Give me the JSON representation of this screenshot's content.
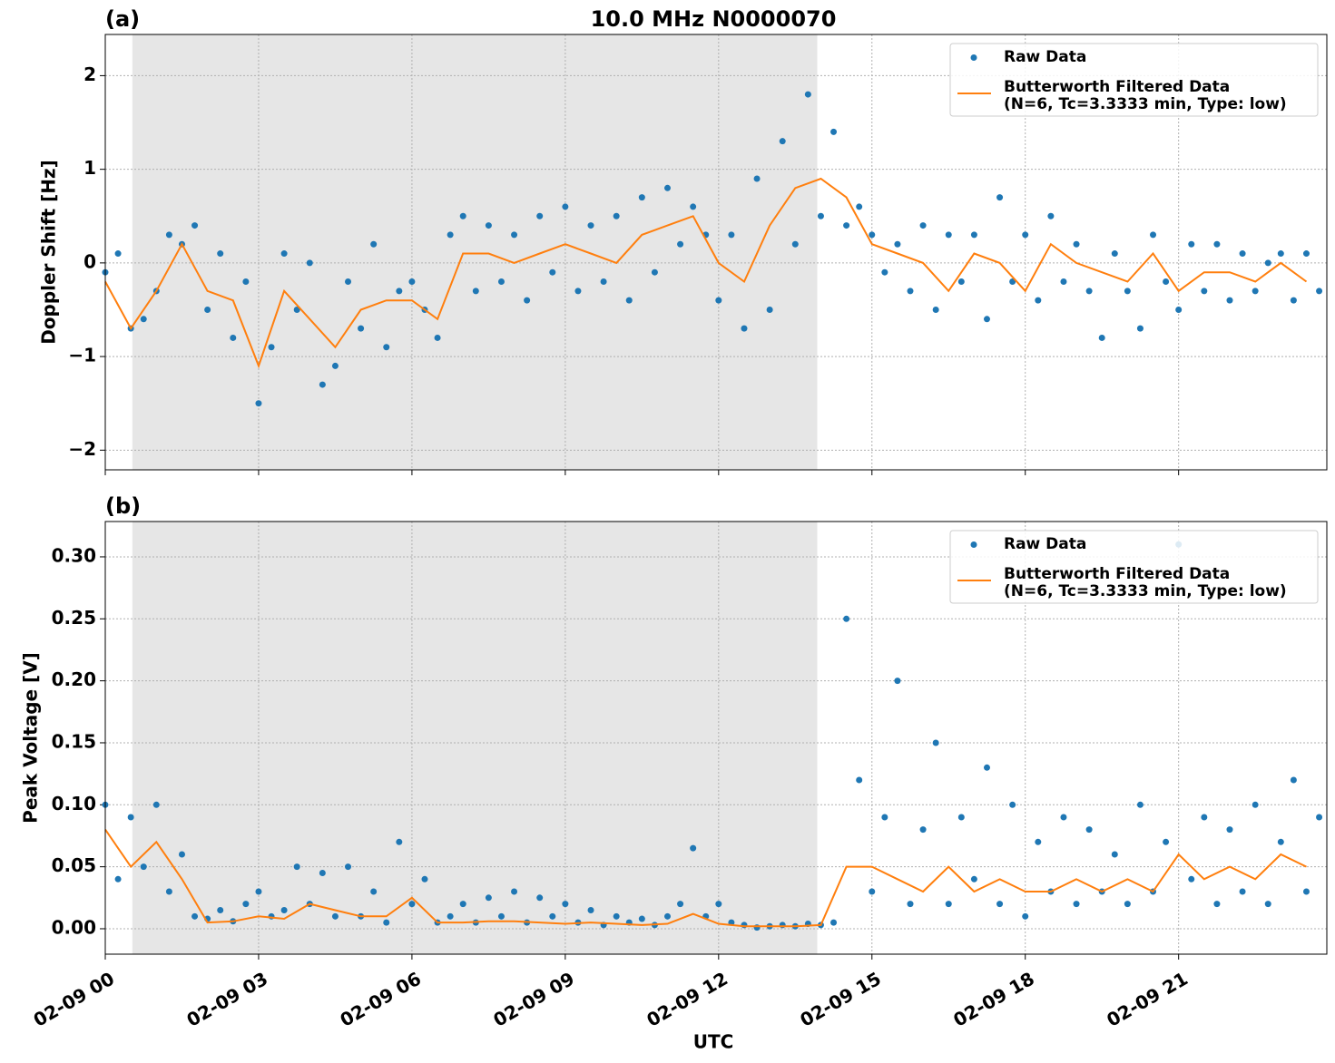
{
  "chart_data": [
    {
      "type": "line",
      "panel_label": "(a)",
      "title": "10.0 MHz N0000070",
      "ylabel": "Doppler Shift [Hz]",
      "xlim": [
        0,
        23.9
      ],
      "ylim": [
        -2.21,
        2.44
      ],
      "xticks": [
        0,
        3,
        6,
        9,
        12,
        15,
        18,
        21
      ],
      "yticks": [
        {
          "value": -2,
          "label": "−2"
        },
        {
          "value": -1,
          "label": "−1"
        },
        0,
        1,
        2
      ],
      "grid": true,
      "legend": "upper right",
      "shaded_span": [
        0.53,
        13.93
      ],
      "shade_color": "#e6e6e6",
      "series": [
        {
          "name": "Raw Data",
          "kind": "scatter",
          "color": "#1f77b4",
          "x": [
            0,
            0.25,
            0.5,
            0.75,
            1,
            1.25,
            1.5,
            1.75,
            2,
            2.25,
            2.5,
            2.75,
            3,
            3.25,
            3.5,
            3.75,
            4,
            4.25,
            4.5,
            4.75,
            5,
            5.25,
            5.5,
            5.75,
            6,
            6.25,
            6.5,
            6.75,
            7,
            7.25,
            7.5,
            7.75,
            8,
            8.25,
            8.5,
            8.75,
            9,
            9.25,
            9.5,
            9.75,
            10,
            10.25,
            10.5,
            10.75,
            11,
            11.25,
            11.5,
            11.75,
            12,
            12.25,
            12.5,
            12.75,
            13,
            13.25,
            13.5,
            13.75,
            14,
            14.25,
            14.5,
            14.75,
            15,
            15.25,
            15.5,
            15.75,
            16,
            16.25,
            16.5,
            16.75,
            17,
            17.25,
            17.5,
            17.75,
            18,
            18.25,
            18.5,
            18.75,
            19,
            19.25,
            19.5,
            19.75,
            20,
            20.25,
            20.5,
            20.75,
            21,
            21.25,
            21.5,
            21.75,
            22,
            22.25,
            22.5,
            22.75,
            23,
            23.25,
            23.5,
            23.75
          ],
          "values": [
            -0.1,
            0.1,
            -0.7,
            -0.6,
            -0.3,
            0.3,
            0.2,
            0.4,
            -0.5,
            0.1,
            -0.8,
            -0.2,
            -1.5,
            -0.9,
            0.1,
            -0.5,
            0.0,
            -1.3,
            -1.1,
            -0.2,
            -0.7,
            0.2,
            -0.9,
            -0.3,
            -0.2,
            -0.5,
            -0.8,
            0.3,
            0.5,
            -0.3,
            0.4,
            -0.2,
            0.3,
            -0.4,
            0.5,
            -0.1,
            0.6,
            -0.3,
            0.4,
            -0.2,
            0.5,
            -0.4,
            0.7,
            -0.1,
            0.8,
            0.2,
            0.6,
            0.3,
            -0.4,
            0.3,
            -0.7,
            0.9,
            -0.5,
            1.3,
            0.2,
            1.8,
            0.5,
            1.4,
            0.4,
            0.6,
            0.3,
            -0.1,
            0.2,
            -0.3,
            0.4,
            -0.5,
            0.3,
            -0.2,
            0.3,
            -0.6,
            0.7,
            -0.2,
            0.3,
            -0.4,
            0.5,
            -0.2,
            0.2,
            -0.3,
            -0.8,
            0.1,
            -0.3,
            -0.7,
            0.3,
            -0.2,
            -0.5,
            0.2,
            -0.3,
            0.2,
            -0.4,
            0.1,
            -0.3,
            0.0,
            0.1,
            -0.4,
            0.1,
            -0.3
          ]
        },
        {
          "name": "Butterworth Filtered Data\n(N=6, Tc=3.3333 min, Type: low)",
          "kind": "line",
          "color": "#ff7f0e",
          "x": [
            0,
            0.5,
            1,
            1.5,
            2,
            2.5,
            3,
            3.5,
            4,
            4.5,
            5,
            5.5,
            6,
            6.5,
            7,
            7.5,
            8,
            8.5,
            9,
            9.5,
            10,
            10.5,
            11,
            11.5,
            12,
            12.5,
            13,
            13.5,
            14,
            14.5,
            15,
            15.5,
            16,
            16.5,
            17,
            17.5,
            18,
            18.5,
            19,
            19.5,
            20,
            20.5,
            21,
            21.5,
            22,
            22.5,
            23,
            23.5
          ],
          "values": [
            -0.2,
            -0.7,
            -0.3,
            0.2,
            -0.3,
            -0.4,
            -1.1,
            -0.3,
            -0.6,
            -0.9,
            -0.5,
            -0.4,
            -0.4,
            -0.6,
            0.1,
            0.1,
            0.0,
            0.1,
            0.2,
            0.1,
            0.0,
            0.3,
            0.4,
            0.5,
            0.0,
            -0.2,
            0.4,
            0.8,
            0.9,
            0.7,
            0.2,
            0.1,
            0.0,
            -0.3,
            0.1,
            0.0,
            -0.3,
            0.2,
            0.0,
            -0.1,
            -0.2,
            0.1,
            -0.3,
            -0.1,
            -0.1,
            -0.2,
            0.0,
            -0.2
          ]
        }
      ]
    },
    {
      "type": "line",
      "panel_label": "(b)",
      "ylabel": "Peak Voltage [V]",
      "xlabel": "UTC",
      "xlim": [
        0,
        23.9
      ],
      "ylim": [
        -0.0205,
        0.3285
      ],
      "xticks": [
        {
          "value": 0,
          "label": "02-09 00"
        },
        {
          "value": 3,
          "label": "02-09 03"
        },
        {
          "value": 6,
          "label": "02-09 06"
        },
        {
          "value": 9,
          "label": "02-09 09"
        },
        {
          "value": 12,
          "label": "02-09 12"
        },
        {
          "value": 15,
          "label": "02-09 15"
        },
        {
          "value": 18,
          "label": "02-09 18"
        },
        {
          "value": 21,
          "label": "02-09 21"
        }
      ],
      "yticks": [
        {
          "value": 0,
          "label": "0.00"
        },
        {
          "value": 0.05,
          "label": "0.05"
        },
        {
          "value": 0.1,
          "label": "0.10"
        },
        {
          "value": 0.15,
          "label": "0.15"
        },
        {
          "value": 0.2,
          "label": "0.20"
        },
        {
          "value": 0.25,
          "label": "0.25"
        },
        {
          "value": 0.3,
          "label": "0.30"
        }
      ],
      "grid": true,
      "legend": "upper right",
      "shaded_span": [
        0.53,
        13.93
      ],
      "shade_color": "#e6e6e6",
      "series": [
        {
          "name": "Raw Data",
          "kind": "scatter",
          "color": "#1f77b4",
          "x": [
            0,
            0.25,
            0.5,
            0.75,
            1,
            1.25,
            1.5,
            1.75,
            2,
            2.25,
            2.5,
            2.75,
            3,
            3.25,
            3.5,
            3.75,
            4,
            4.25,
            4.5,
            4.75,
            5,
            5.25,
            5.5,
            5.75,
            6,
            6.25,
            6.5,
            6.75,
            7,
            7.25,
            7.5,
            7.75,
            8,
            8.25,
            8.5,
            8.75,
            9,
            9.25,
            9.5,
            9.75,
            10,
            10.25,
            10.5,
            10.75,
            11,
            11.25,
            11.5,
            11.75,
            12,
            12.25,
            12.5,
            12.75,
            13,
            13.25,
            13.5,
            13.75,
            14,
            14.25,
            14.5,
            14.75,
            15,
            15.25,
            15.5,
            15.75,
            16,
            16.25,
            16.5,
            16.75,
            17,
            17.25,
            17.5,
            17.75,
            18,
            18.25,
            18.5,
            18.75,
            19,
            19.25,
            19.5,
            19.75,
            20,
            20.25,
            20.5,
            20.75,
            21,
            21.25,
            21.5,
            21.75,
            22,
            22.25,
            22.5,
            22.75,
            23,
            23.25,
            23.5,
            23.75
          ],
          "values": [
            0.1,
            0.04,
            0.09,
            0.05,
            0.1,
            0.03,
            0.06,
            0.01,
            0.008,
            0.015,
            0.006,
            0.02,
            0.03,
            0.01,
            0.015,
            0.05,
            0.02,
            0.045,
            0.01,
            0.05,
            0.01,
            0.03,
            0.005,
            0.07,
            0.02,
            0.04,
            0.005,
            0.01,
            0.02,
            0.005,
            0.025,
            0.01,
            0.03,
            0.005,
            0.025,
            0.01,
            0.02,
            0.005,
            0.015,
            0.003,
            0.01,
            0.005,
            0.008,
            0.003,
            0.01,
            0.02,
            0.065,
            0.01,
            0.02,
            0.005,
            0.003,
            0.001,
            0.002,
            0.003,
            0.002,
            0.004,
            0.003,
            0.005,
            0.25,
            0.12,
            0.03,
            0.09,
            0.2,
            0.02,
            0.08,
            0.15,
            0.02,
            0.09,
            0.04,
            0.13,
            0.02,
            0.1,
            0.01,
            0.07,
            0.03,
            0.09,
            0.02,
            0.08,
            0.03,
            0.06,
            0.02,
            0.1,
            0.03,
            0.07,
            0.31,
            0.04,
            0.09,
            0.02,
            0.08,
            0.03,
            0.1,
            0.02,
            0.07,
            0.12,
            0.03,
            0.09
          ]
        },
        {
          "name": "Butterworth Filtered Data\n(N=6, Tc=3.3333 min, Type: low)",
          "kind": "line",
          "color": "#ff7f0e",
          "x": [
            0,
            0.5,
            1,
            1.5,
            2,
            2.5,
            3,
            3.5,
            4,
            4.5,
            5,
            5.5,
            6,
            6.5,
            7,
            7.5,
            8,
            8.5,
            9,
            9.5,
            10,
            10.5,
            11,
            11.5,
            12,
            12.5,
            13,
            13.5,
            14,
            14.5,
            15,
            15.5,
            16,
            16.5,
            17,
            17.5,
            18,
            18.5,
            19,
            19.5,
            20,
            20.5,
            21,
            21.5,
            22,
            22.5,
            23,
            23.5
          ],
          "values": [
            0.08,
            0.05,
            0.07,
            0.04,
            0.005,
            0.006,
            0.01,
            0.008,
            0.02,
            0.015,
            0.01,
            0.01,
            0.025,
            0.005,
            0.005,
            0.006,
            0.006,
            0.005,
            0.004,
            0.005,
            0.004,
            0.003,
            0.004,
            0.012,
            0.004,
            0.002,
            0.002,
            0.002,
            0.003,
            0.05,
            0.05,
            0.04,
            0.03,
            0.05,
            0.03,
            0.04,
            0.03,
            0.03,
            0.04,
            0.03,
            0.04,
            0.03,
            0.06,
            0.04,
            0.05,
            0.04,
            0.06,
            0.05
          ]
        }
      ]
    }
  ]
}
